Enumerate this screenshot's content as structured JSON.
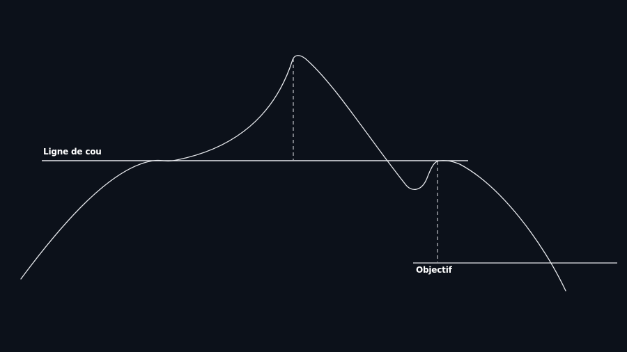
{
  "labels": {
    "neckline": "Ligne de cou",
    "target": "Objectif"
  },
  "colors": {
    "background": "#0c111a",
    "line": "#e6e8ec",
    "text": "#ffffff"
  }
}
